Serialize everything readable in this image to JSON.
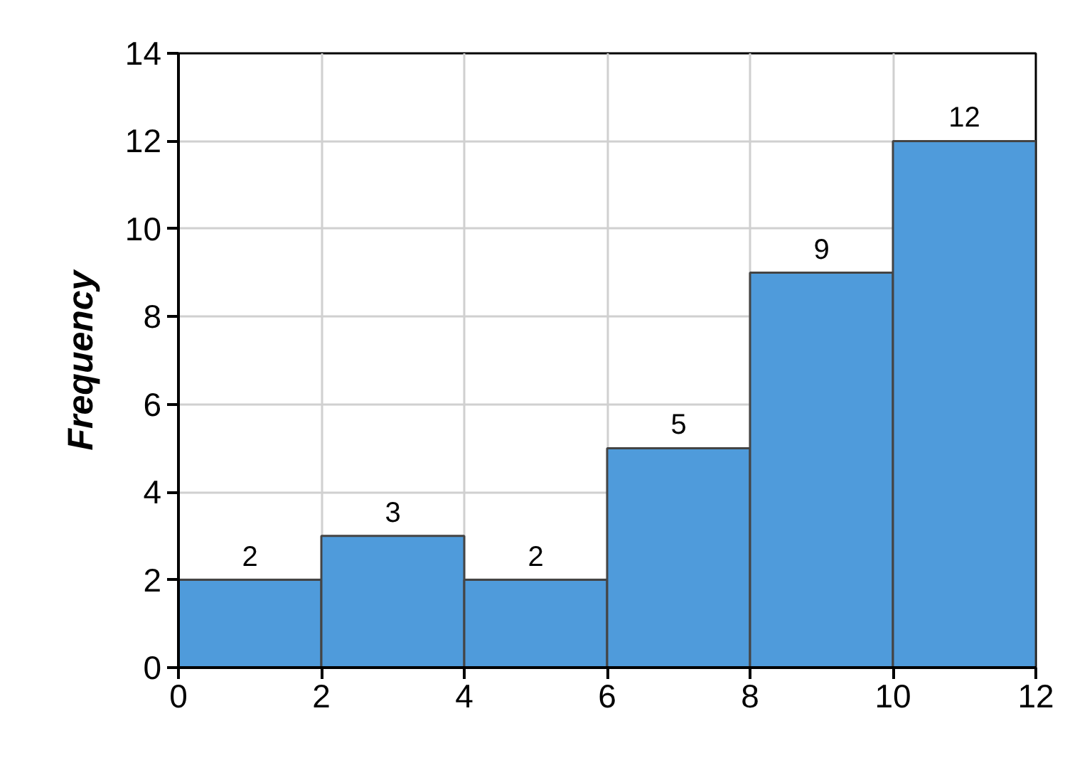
{
  "chart_data": {
    "type": "histogram",
    "ylabel": "Frequency",
    "bins": [
      0,
      2,
      4,
      6,
      8,
      10,
      12
    ],
    "values": [
      2,
      3,
      2,
      5,
      9,
      12
    ],
    "color": "#4f9bdb",
    "xlim": [
      0,
      12
    ],
    "ylim": [
      0,
      14
    ],
    "xticks": [
      0,
      2,
      4,
      6,
      8,
      10,
      12
    ],
    "yticks": [
      0,
      2,
      4,
      6,
      8,
      10,
      12,
      14
    ],
    "grid": true,
    "data_labels": true
  }
}
